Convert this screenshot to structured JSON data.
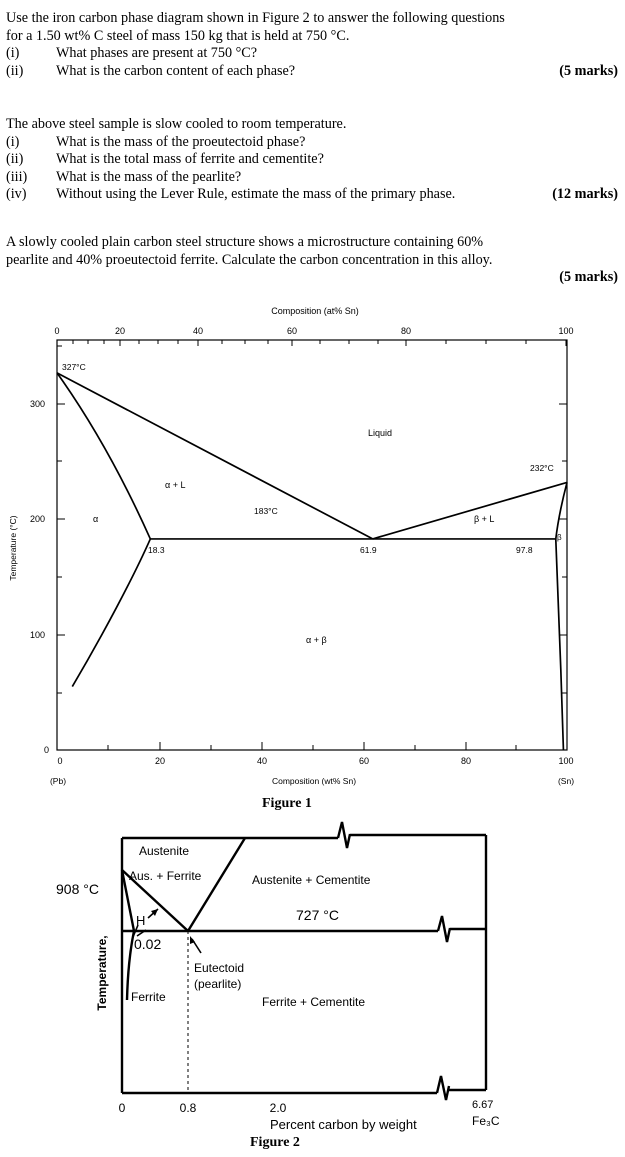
{
  "q1": {
    "intro_1": "Use the iron carbon phase diagram shown in Figure 2 to answer the following questions",
    "intro_2": "for a 1.50 wt% C steel of mass 150 kg that is held at 750 °C.",
    "items": [
      {
        "num": "(i)",
        "text": "What phases are present at 750 °C?"
      },
      {
        "num": "(ii)",
        "text": "What is the carbon content of each phase?"
      }
    ],
    "marks": "(5 marks)"
  },
  "q2": {
    "intro": "The above steel sample is slow cooled to room temperature.",
    "items": [
      {
        "num": "(i)",
        "text": "What is the mass of the proeutectoid phase?"
      },
      {
        "num": "(ii)",
        "text": "What is the total mass of ferrite and cementite?"
      },
      {
        "num": "(iii)",
        "text": "What is the mass of the pearlite?"
      },
      {
        "num": "(iv)",
        "text": "Without using the Lever Rule, estimate the mass of the primary phase."
      }
    ],
    "marks": "(12 marks)"
  },
  "q3": {
    "line_1": "A slowly cooled plain carbon steel structure shows a microstructure containing 60%",
    "line_2": "pearlite and 40% proeutectoid ferrite.  Calculate the carbon concentration in this alloy.",
    "marks": "(5 marks)"
  },
  "figure1": {
    "caption": "Figure 1",
    "top_axis_title": "Composition (at% Sn)",
    "top_ticks": [
      "0",
      "20",
      "40",
      "60",
      "80",
      "100"
    ],
    "bottom_axis_title": "Composition (wt% Sn)",
    "bottom_ticks": [
      "0",
      "20",
      "40",
      "60",
      "80",
      "100"
    ],
    "y_axis_title": "Temperature (°C)",
    "y_ticks": [
      "0",
      "100",
      "200",
      "300"
    ],
    "left_end": "(Pb)",
    "right_end": "(Sn)",
    "label_327": "327°C",
    "label_232": "232°C",
    "label_183": "183°C",
    "label_liquid": "Liquid",
    "label_alpha_l": "α + L",
    "label_beta_l": "β + L",
    "label_alpha": "α",
    "label_beta": "β",
    "label_alpha_beta": "α + β",
    "label_18_3": "18.3",
    "label_61_9": "61.9",
    "label_97_8": "97.8",
    "chart_data": {
      "type": "phase-diagram",
      "xlabel": "Composition (wt% Sn)",
      "ylabel": "Temperature (°C)",
      "xlim": [
        0,
        100
      ],
      "ylim": [
        0,
        350
      ],
      "points": {
        "pb_melting": {
          "x": 0,
          "y": 327
        },
        "sn_melting": {
          "x": 100,
          "y": 232
        },
        "eutectic": {
          "x": 61.9,
          "y": 183
        },
        "alpha_max_solubility": {
          "x": 18.3,
          "y": 183
        },
        "beta_max_solubility": {
          "x": 97.8,
          "y": 183
        }
      },
      "liquidus": [
        [
          0,
          327
        ],
        [
          61.9,
          183
        ],
        [
          100,
          232
        ]
      ],
      "alpha_solidus": [
        [
          0,
          327
        ],
        [
          18.3,
          183
        ]
      ],
      "alpha_solvus": [
        [
          18.3,
          183
        ],
        [
          15,
          150
        ],
        [
          9,
          100
        ],
        [
          3,
          55
        ]
      ],
      "beta_solidus": [
        [
          100,
          232
        ],
        [
          97.8,
          183
        ]
      ],
      "beta_solvus": [
        [
          97.8,
          183
        ],
        [
          98.3,
          130
        ],
        [
          98.9,
          60
        ],
        [
          99.3,
          0
        ]
      ],
      "eutectic_isotherm": {
        "y": 183,
        "x": [
          18.3,
          97.8
        ]
      }
    }
  },
  "figure2": {
    "caption": "Figure 2",
    "y_axis_title": "Temperature,",
    "label_austenite": "Austenite",
    "label_aus_ferrite": "Aus. + Ferrite",
    "label_aus_cementite": "Austenite + Cementite",
    "label_908": "908 °C",
    "label_727": "727 °C",
    "label_h": "H",
    "label_0_02": "0.02",
    "label_eutectoid": "Eutectoid",
    "label_pearlite": "(pearlite)",
    "label_ferrite": "Ferrite",
    "label_ferrite_cementite": "Ferrite + Cementite",
    "x_ticks": [
      "0",
      "0.8",
      "2.0"
    ],
    "label_6_67": "6.67",
    "label_fe3c": "Fe₃C",
    "x_axis_title": "Percent carbon by weight"
  }
}
